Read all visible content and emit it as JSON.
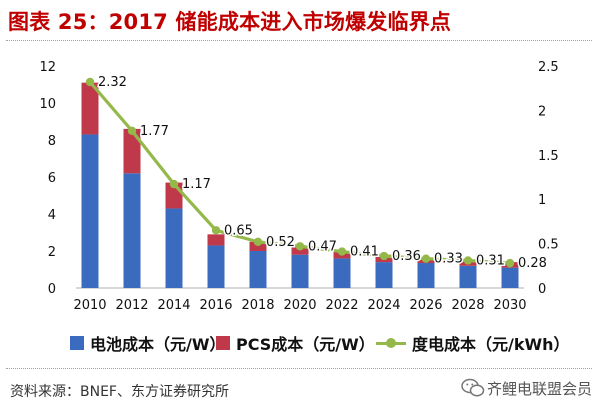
{
  "title": "图表 25：2017 储能成本进入市场爆发临界点",
  "source": "资料来源：BNEF、东方证券研究所",
  "watermark": "齐鲤电联盟会员",
  "colors": {
    "battery": "#3b6bbf",
    "pcs": "#c0394a",
    "line": "#95b84a",
    "title": "#c00000"
  },
  "chart_data": {
    "type": "bar",
    "categories": [
      "2010",
      "2012",
      "2014",
      "2016",
      "2018",
      "2020",
      "2022",
      "2024",
      "2026",
      "2028",
      "2030"
    ],
    "series": [
      {
        "name": "电池成本（元/W）",
        "kind": "stacked-bar",
        "axis": "left",
        "values": [
          8.3,
          6.2,
          4.3,
          2.3,
          2.0,
          1.8,
          1.6,
          1.4,
          1.35,
          1.2,
          1.1
        ]
      },
      {
        "name": "PCS成本（元/W）",
        "kind": "stacked-bar",
        "axis": "left",
        "values": [
          2.8,
          2.4,
          1.4,
          0.6,
          0.5,
          0.4,
          0.4,
          0.4,
          0.3,
          0.3,
          0.3
        ]
      },
      {
        "name": "度电成本（元/kWh）",
        "kind": "line",
        "axis": "right",
        "values": [
          2.32,
          1.77,
          1.17,
          0.65,
          0.52,
          0.47,
          0.41,
          0.36,
          0.33,
          0.31,
          0.28
        ],
        "labels": [
          "2.32",
          "1.77",
          "1.17",
          "0.65",
          "0.52",
          "0.47",
          "0.41",
          "0.36",
          "0.33",
          "0.31",
          "0.28"
        ]
      }
    ],
    "y_left": {
      "lim": [
        0,
        12
      ],
      "ticks": [
        "0",
        "2",
        "4",
        "6",
        "8",
        "10",
        "12"
      ]
    },
    "y_right": {
      "lim": [
        0,
        2.5
      ],
      "ticks": [
        "0",
        "0.5",
        "1",
        "1.5",
        "2",
        "2.5"
      ]
    },
    "grid": false,
    "legend_position": "bottom"
  },
  "legend": [
    {
      "label": "电池成本（元/W）"
    },
    {
      "label": "PCS成本（元/W）"
    },
    {
      "label": "度电成本（元/kWh）"
    }
  ]
}
